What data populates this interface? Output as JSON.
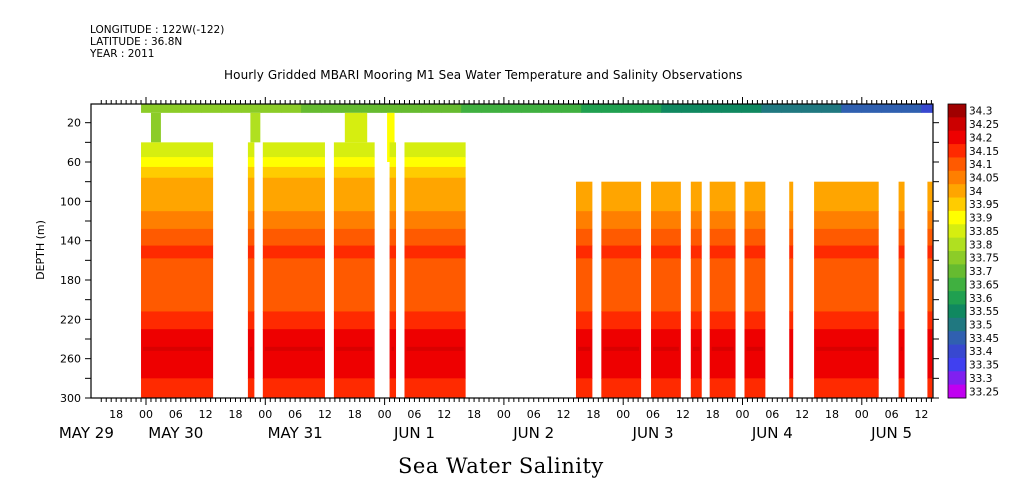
{
  "header": {
    "longitude": "LONGITUDE : 122W(-122)",
    "latitude": "LATITUDE : 36.8N",
    "year": "YEAR : 2011"
  },
  "chart_data": {
    "type": "heatmap",
    "title": "Hourly Gridded MBARI Mooring M1 Sea Water Temperature and Salinity Observations",
    "xlabel": "Sea Water Salinity",
    "ylabel": "DEPTH (m)",
    "ylim": [
      300,
      0
    ],
    "y_ticks": [
      20,
      60,
      100,
      140,
      180,
      220,
      260,
      300
    ],
    "x_range_hours": [
      -9.5,
      160
    ],
    "x_ticks": [
      {
        "label": "18",
        "hour": -6
      },
      {
        "label": "00",
        "hour": 0
      },
      {
        "label": "06",
        "hour": 6
      },
      {
        "label": "12",
        "hour": 12
      },
      {
        "label": "18",
        "hour": 18
      },
      {
        "label": "00",
        "hour": 24
      },
      {
        "label": "06",
        "hour": 30
      },
      {
        "label": "12",
        "hour": 36
      },
      {
        "label": "18",
        "hour": 42
      },
      {
        "label": "00",
        "hour": 48
      },
      {
        "label": "06",
        "hour": 54
      },
      {
        "label": "12",
        "hour": 60
      },
      {
        "label": "18",
        "hour": 66
      },
      {
        "label": "00",
        "hour": 72
      },
      {
        "label": "06",
        "hour": 78
      },
      {
        "label": "12",
        "hour": 84
      },
      {
        "label": "18",
        "hour": 90
      },
      {
        "label": "00",
        "hour": 96
      },
      {
        "label": "06",
        "hour": 102
      },
      {
        "label": "12",
        "hour": 108
      },
      {
        "label": "18",
        "hour": 114
      },
      {
        "label": "00",
        "hour": 120
      },
      {
        "label": "06",
        "hour": 126
      },
      {
        "label": "12",
        "hour": 132
      },
      {
        "label": "18",
        "hour": 138
      },
      {
        "label": "00",
        "hour": 144
      },
      {
        "label": "06",
        "hour": 150
      },
      {
        "label": "12",
        "hour": 156
      }
    ],
    "date_labels": [
      {
        "label": "MAY 29",
        "hour": -12
      },
      {
        "label": "MAY 30",
        "hour": 6
      },
      {
        "label": "MAY 31",
        "hour": 30
      },
      {
        "label": "JUN  1",
        "hour": 54
      },
      {
        "label": "JUN  2",
        "hour": 78
      },
      {
        "label": "JUN  3",
        "hour": 102
      },
      {
        "label": "JUN  4",
        "hour": 126
      },
      {
        "label": "JUN  5",
        "hour": 150
      }
    ],
    "colorbar": {
      "levels": [
        "34.3",
        "34.25",
        "34.2",
        "34.15",
        "34.1",
        "34.05",
        "34",
        "33.95",
        "33.9",
        "33.85",
        "33.8",
        "33.75",
        "33.7",
        "33.65",
        "33.6",
        "33.55",
        "33.5",
        "33.45",
        "33.4",
        "33.35",
        "33.3",
        "33.25"
      ],
      "colors": [
        "#a00000",
        "#cc0000",
        "#ee0000",
        "#ff2a00",
        "#ff5a00",
        "#ff7f00",
        "#ffa500",
        "#ffcc00",
        "#ffff00",
        "#d6ee10",
        "#b0e020",
        "#8ccc28",
        "#66bb30",
        "#40b040",
        "#20a050",
        "#108860",
        "#207880",
        "#3060b0",
        "#3848d0",
        "#4040f0",
        "#8020f0",
        "#c000f0"
      ]
    },
    "surface_band": {
      "depth_range": [
        1,
        10
      ],
      "hour_range": [
        -1,
        160
      ],
      "salinity_trend_start": 33.75,
      "salinity_trend_end": 33.4
    },
    "upper_columns": [
      {
        "hours": [
          1,
          3
        ],
        "depth_range": [
          10,
          40
        ],
        "salinity": 33.75
      },
      {
        "hours": [
          21,
          23
        ],
        "depth_range": [
          10,
          40
        ],
        "salinity": 33.8
      },
      {
        "hours": [
          40,
          44.5
        ],
        "depth_range": [
          10,
          40
        ],
        "salinity": 33.85
      },
      {
        "hours": [
          48.5,
          50
        ],
        "depth_range": [
          10,
          60
        ],
        "salinity": 33.9
      }
    ],
    "profile_columns": [
      {
        "hours": [
          -1,
          13.5
        ],
        "top_depth": 40
      },
      {
        "hours": [
          20.5,
          21.8
        ],
        "top_depth": 40
      },
      {
        "hours": [
          23.5,
          36
        ],
        "top_depth": 40
      },
      {
        "hours": [
          37.8,
          46
        ],
        "top_depth": 40
      },
      {
        "hours": [
          49,
          50.3
        ],
        "top_depth": 40
      },
      {
        "hours": [
          52,
          64.3
        ],
        "top_depth": 40
      },
      {
        "hours": [
          86.5,
          89.8
        ],
        "top_depth": 80
      },
      {
        "hours": [
          91.6,
          99.6
        ],
        "top_depth": 80
      },
      {
        "hours": [
          101.6,
          107.6
        ],
        "top_depth": 80
      },
      {
        "hours": [
          109.6,
          111.8
        ],
        "top_depth": 80
      },
      {
        "hours": [
          113.4,
          118.6
        ],
        "top_depth": 80
      },
      {
        "hours": [
          120.4,
          124.6
        ],
        "top_depth": 80
      },
      {
        "hours": [
          129.4,
          130.2
        ],
        "top_depth": 80
      },
      {
        "hours": [
          134.4,
          147.4
        ],
        "top_depth": 80
      },
      {
        "hours": [
          151.4,
          152.6
        ],
        "top_depth": 80
      },
      {
        "hours": [
          157.2,
          158.2
        ],
        "top_depth": 80
      },
      {
        "hours": [
          158.4,
          159.4
        ],
        "top_depth": 80
      },
      {
        "hours": [
          162.4,
          163.8
        ],
        "top_depth": 80
      },
      {
        "hours": [
          166,
          172.5
        ],
        "top_depth": 80
      }
    ],
    "depth_profile": [
      {
        "depth_from": 40,
        "depth_to": 55,
        "salinity": 33.85
      },
      {
        "depth_from": 55,
        "depth_to": 65,
        "salinity": 33.9
      },
      {
        "depth_from": 65,
        "depth_to": 76,
        "salinity": 33.95
      },
      {
        "depth_from": 76,
        "depth_to": 110,
        "salinity": 34.0
      },
      {
        "depth_from": 110,
        "depth_to": 128,
        "salinity": 34.05
      },
      {
        "depth_from": 128,
        "depth_to": 145,
        "salinity": 34.1
      },
      {
        "depth_from": 145,
        "depth_to": 158,
        "salinity": 34.15
      },
      {
        "depth_from": 158,
        "depth_to": 212,
        "salinity": 34.1
      },
      {
        "depth_from": 212,
        "depth_to": 230,
        "salinity": 34.15
      },
      {
        "depth_from": 230,
        "depth_to": 280,
        "salinity": 34.2
      },
      {
        "depth_from": 280,
        "depth_to": 300,
        "salinity": 34.15
      }
    ],
    "deep_max": {
      "depth": 250,
      "salinity": 34.25
    }
  }
}
